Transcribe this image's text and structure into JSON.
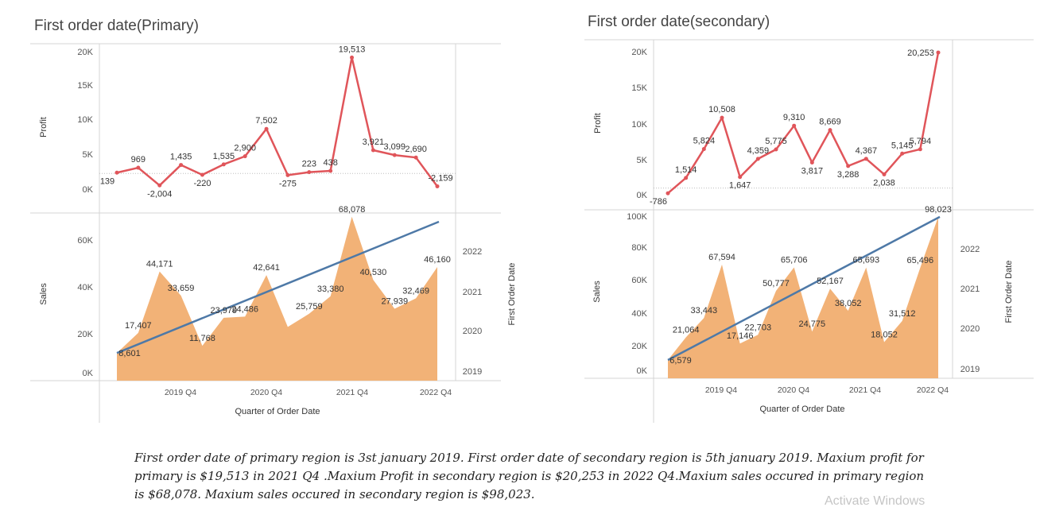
{
  "colors": {
    "profit_line": "#e0555a",
    "sales_area": "#f2b277",
    "trend_line": "#4e79a7",
    "axis": "#d4d4d4",
    "text": "#555555",
    "label": "#333333"
  },
  "chart_data": [
    {
      "type": "line+area",
      "title": "First order date(Primary)",
      "xlabel": "Quarter of Order Date",
      "xticks": [
        "2019 Q4",
        "2020 Q4",
        "2021 Q4",
        "2022 Q4"
      ],
      "profit": {
        "axis_label": "Profit",
        "ticks": [
          "20K",
          "15K",
          "10K",
          "5K",
          "0K"
        ],
        "ylim": [
          -2500,
          20500
        ],
        "values": [
          139,
          969,
          -2004,
          1435,
          -220,
          1535,
          2900,
          7502,
          -275,
          223,
          438,
          19513,
          3921,
          3099,
          2690,
          -2159
        ],
        "labels": [
          "139",
          "969",
          "-2,004",
          "1,435",
          "-220",
          "1,535",
          "2,900",
          "7,502",
          "-275",
          "223",
          "438",
          "19,513",
          "3,921",
          "3,099",
          "2,690",
          "-2,159"
        ]
      },
      "sales": {
        "axis_label": "Sales",
        "ticks": [
          "60K",
          "40K",
          "20K",
          "0K"
        ],
        "ylim": [
          0,
          68000
        ],
        "values": [
          8601,
          17407,
          44171,
          33659,
          11768,
          23979,
          24486,
          42641,
          20000,
          25759,
          33380,
          68078,
          40530,
          27939,
          32469,
          46160
        ],
        "labels": [
          "8,601",
          "17,407",
          "44,171",
          "33,659",
          "11,768",
          "23,979",
          "24,486",
          "42,641",
          "",
          "25,759",
          "33,380",
          "68,078",
          "40,530",
          "27,939",
          "32,469",
          "46,160"
        ]
      },
      "secondary_axis": {
        "label": "First Order Date",
        "ticks": [
          "2022",
          "2021",
          "2020",
          "2019"
        ]
      }
    },
    {
      "type": "line+area",
      "title": "First order date(secondary)",
      "xlabel": "Quarter of Order Date",
      "xticks": [
        "2019 Q4",
        "2020 Q4",
        "2021 Q4",
        "2022 Q4"
      ],
      "profit": {
        "axis_label": "Profit",
        "ticks": [
          "20K",
          "15K",
          "10K",
          "5K",
          "0K"
        ],
        "ylim": [
          -1000,
          20500
        ],
        "values": [
          -786,
          1514,
          5824,
          10508,
          1647,
          4359,
          5775,
          9310,
          3817,
          8669,
          3288,
          4367,
          2038,
          5145,
          5794,
          20253
        ],
        "labels": [
          "-786",
          "1,514",
          "5,824",
          "10,508",
          "1,647",
          "4,359",
          "5,775",
          "9,310",
          "3,817",
          "8,669",
          "3,288",
          "4,367",
          "2,038",
          "5,145",
          "5,794",
          "20,253"
        ]
      },
      "sales": {
        "axis_label": "Sales",
        "ticks": [
          "100K",
          "80K",
          "60K",
          "40K",
          "20K",
          "0K"
        ],
        "ylim": [
          0,
          100000
        ],
        "values": [
          6579,
          21064,
          33443,
          67594,
          17146,
          22703,
          50777,
          65706,
          24775,
          52167,
          38052,
          65693,
          18052,
          31512,
          65496,
          98023
        ],
        "labels": [
          "6,579",
          "21,064",
          "33,443",
          "67,594",
          "17,146",
          "22,703",
          "50,777",
          "65,706",
          "24,775",
          "52,167",
          "38,052",
          "65,693",
          "18,052",
          "31,512",
          "65,496",
          "98,023"
        ]
      },
      "secondary_axis": {
        "label": "First Order Date",
        "ticks": [
          "2022",
          "2021",
          "2020",
          "2019"
        ]
      }
    }
  ],
  "caption": "First order date of primary region is 3st january 2019. First order date of secondary region is 5th january 2019. Maxium profit  for primary is $19,513 in 2021 Q4 .Maxium Profit in secondary region is $20,253 in 2022 Q4.Maxium sales occured in primary region is $68,078. Maxium sales occured in secondary region is $98,023.",
  "watermark": "Activate Windows"
}
